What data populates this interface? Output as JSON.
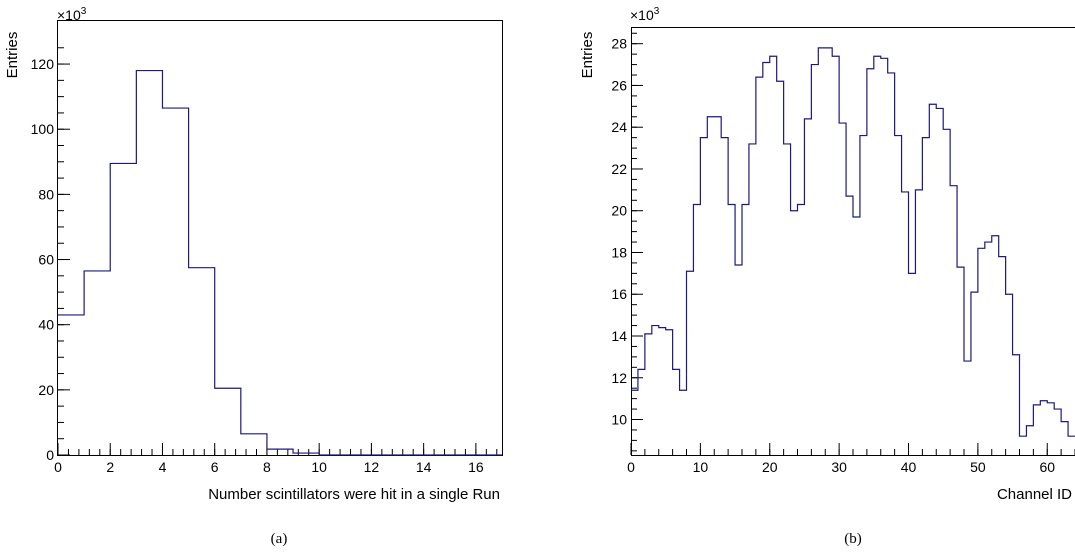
{
  "chart_data": [
    {
      "type": "bar",
      "caption": "(a)",
      "title": "",
      "xlabel": "Number scintillators were hit in a single Run",
      "ylabel": "Entries",
      "yexponent": "×10",
      "yexponent_power": "3",
      "xlim": [
        0,
        17
      ],
      "ylim": [
        0,
        128
      ],
      "xticks": [
        0,
        2,
        4,
        6,
        8,
        10,
        12,
        14,
        16
      ],
      "yticks": [
        0,
        20,
        40,
        60,
        80,
        100,
        120
      ],
      "bin_edges": [
        0,
        1,
        2,
        3,
        4,
        5,
        6,
        7,
        8,
        9,
        10,
        11,
        12,
        13,
        14,
        15,
        16,
        17
      ],
      "values": [
        43,
        56.5,
        89.5,
        118,
        106.5,
        57.5,
        20.5,
        6.5,
        1.8,
        0.6,
        0,
        0,
        0,
        0,
        0,
        0,
        0
      ],
      "line_color": "#1a1a80"
    },
    {
      "type": "bar",
      "caption": "(b)",
      "title": "",
      "xlabel": "Channel ID",
      "ylabel": "Entries",
      "yexponent": "×10",
      "yexponent_power": "3",
      "xlim": [
        0,
        64
      ],
      "ylim": [
        8.3,
        28.8
      ],
      "xticks": [
        0,
        10,
        20,
        30,
        40,
        50,
        60
      ],
      "yticks": [
        10,
        12,
        14,
        16,
        18,
        20,
        22,
        24,
        26,
        28
      ],
      "bin_width": 1,
      "values": [
        11.4,
        12.4,
        14.1,
        14.5,
        14.4,
        14.3,
        12.4,
        11.4,
        17.1,
        20.3,
        23.5,
        24.5,
        24.5,
        23.5,
        20.3,
        17.4,
        20.3,
        23.2,
        26.4,
        27.1,
        27.4,
        26.2,
        23.2,
        20.0,
        20.3,
        24.4,
        27.0,
        27.8,
        27.8,
        27.4,
        24.2,
        20.7,
        19.7,
        23.6,
        26.8,
        27.4,
        27.3,
        26.6,
        23.6,
        20.9,
        17.0,
        21.0,
        23.5,
        25.1,
        24.9,
        23.9,
        21.2,
        17.3,
        12.8,
        16.1,
        18.2,
        18.5,
        18.8,
        17.8,
        16.0,
        13.1,
        9.2,
        9.7,
        10.7,
        10.9,
        10.8,
        10.5,
        9.9,
        9.2
      ],
      "line_color": "#1a1a80"
    }
  ]
}
